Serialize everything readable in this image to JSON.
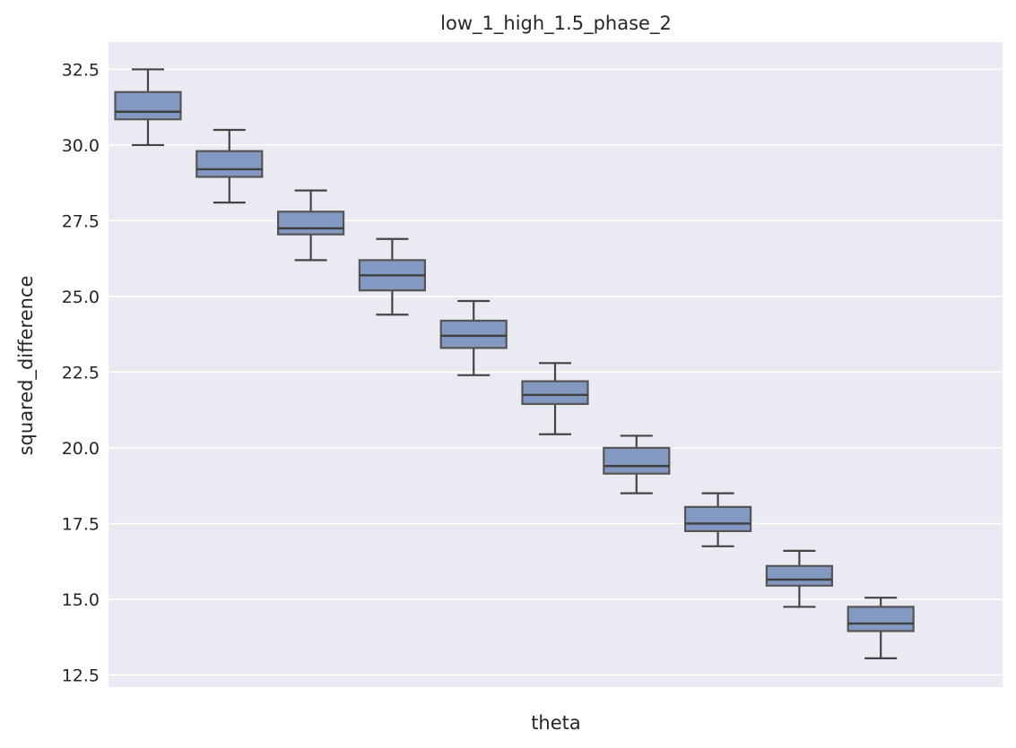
{
  "chart_data": {
    "type": "box",
    "title": "low_1_high_1.5_phase_2",
    "xlabel": "theta",
    "ylabel": "squared_difference",
    "ylim": [
      12.1,
      33.4
    ],
    "yticks": [
      "12.5",
      "15.0",
      "17.5",
      "20.0",
      "22.5",
      "25.0",
      "27.5",
      "30.0",
      "32.5"
    ],
    "ytick_values": [
      12.5,
      15.0,
      17.5,
      20.0,
      22.5,
      25.0,
      27.5,
      30.0,
      32.5
    ],
    "grid": true,
    "colors": {
      "background": "#eaeaf2",
      "box_fill": "#8399c2",
      "box_edge": "#555555",
      "grid": "#ffffff"
    },
    "boxes": [
      {
        "whisker_low": 30.0,
        "q1": 30.85,
        "median": 31.1,
        "q3": 31.75,
        "whisker_high": 32.5
      },
      {
        "whisker_low": 28.1,
        "q1": 28.95,
        "median": 29.2,
        "q3": 29.8,
        "whisker_high": 30.5
      },
      {
        "whisker_low": 26.2,
        "q1": 27.05,
        "median": 27.25,
        "q3": 27.8,
        "whisker_high": 28.5
      },
      {
        "whisker_low": 24.4,
        "q1": 25.2,
        "median": 25.7,
        "q3": 26.2,
        "whisker_high": 26.9
      },
      {
        "whisker_low": 22.4,
        "q1": 23.3,
        "median": 23.7,
        "q3": 24.2,
        "whisker_high": 24.85
      },
      {
        "whisker_low": 20.45,
        "q1": 21.45,
        "median": 21.75,
        "q3": 22.2,
        "whisker_high": 22.8
      },
      {
        "whisker_low": 18.5,
        "q1": 19.15,
        "median": 19.4,
        "q3": 20.0,
        "whisker_high": 20.4
      },
      {
        "whisker_low": 16.75,
        "q1": 17.25,
        "median": 17.5,
        "q3": 18.05,
        "whisker_high": 18.5
      },
      {
        "whisker_low": 14.75,
        "q1": 15.45,
        "median": 15.65,
        "q3": 16.1,
        "whisker_high": 16.6
      },
      {
        "whisker_low": 13.05,
        "q1": 13.95,
        "median": 14.2,
        "q3": 14.75,
        "whisker_high": 15.05
      }
    ]
  }
}
